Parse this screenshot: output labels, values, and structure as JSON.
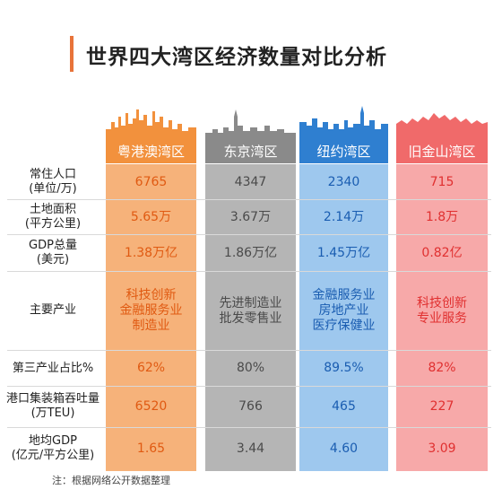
{
  "title": "世界四大湾区经济数量对比分析",
  "colors": {
    "accent": "#e8733a",
    "guangdong": "#f2913d",
    "tokyo": "#8a8a8a",
    "newyork": "#2f7fd0",
    "sanfrancisco": "#f06a6a"
  },
  "bays": [
    "粤港澳湾区",
    "东京湾区",
    "纽约湾区",
    "旧金山湾区"
  ],
  "rows": [
    {
      "label": "常住人口\n(单位/万)",
      "values": [
        "6765",
        "4347",
        "2340",
        "715"
      ]
    },
    {
      "label": "土地面积\n(平方公里)",
      "values": [
        "5.65万",
        "3.67万",
        "2.14万",
        "1.8万"
      ]
    },
    {
      "label": "GDP总量\n(美元)",
      "values": [
        "1.38万亿",
        "1.86万亿",
        "1.45万亿",
        "0.82亿"
      ]
    },
    {
      "label": "主要产业",
      "values": [
        "科技创新\n金融服务业\n制造业",
        "先进制造业\n批发零售业",
        "金融服务业\n房地产业\n医疗保健业",
        "科技创新\n专业服务"
      ]
    },
    {
      "label": "第三产业占比%",
      "values": [
        "62%",
        "80%",
        "89.5%",
        "82%"
      ]
    },
    {
      "label": "港口集装箱吞吐量\n(万TEU)",
      "values": [
        "6520",
        "766",
        "465",
        "227"
      ]
    },
    {
      "label": "地均GDP\n(亿元/平方公里)",
      "values": [
        "1.65",
        "3.44",
        "4.60",
        "3.09"
      ]
    }
  ],
  "note": "注：根据网络公开数据整理"
}
